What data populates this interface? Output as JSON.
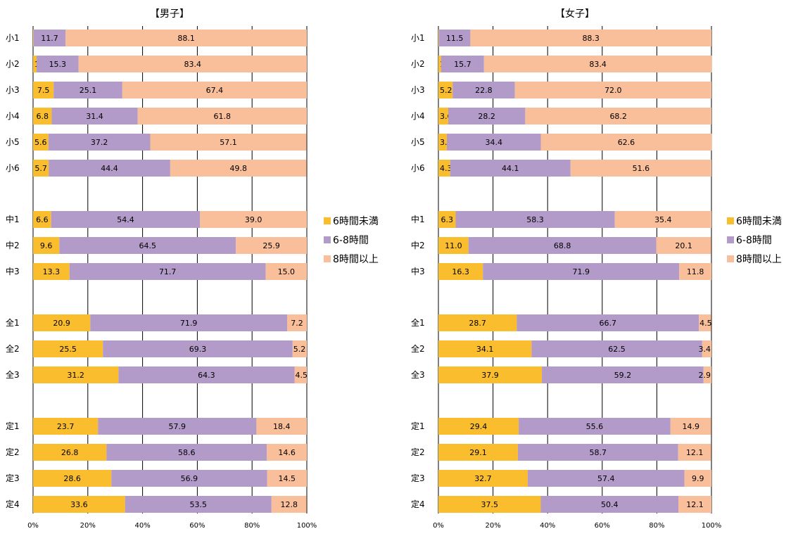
{
  "colors": {
    "under6": "#FABD2E",
    "six_to_eight": "#B29AC9",
    "over8": "#F9BE9A",
    "grid": "#000000"
  },
  "legend": [
    "6時間未満",
    "6-8時間",
    "8時間以上"
  ],
  "chart_data": [
    {
      "type": "bar",
      "orientation": "horizontal",
      "stacked": true,
      "percent_stacked": true,
      "title": "【男子】",
      "categories": [
        "小1",
        "小2",
        "小3",
        "小4",
        "小5",
        "小6",
        "中1",
        "中2",
        "中3",
        "全1",
        "全2",
        "全3",
        "定1",
        "定2",
        "定3",
        "定4"
      ],
      "groups": [
        [
          "小1",
          "小2",
          "小3",
          "小4",
          "小5",
          "小6"
        ],
        [
          "中1",
          "中2",
          "中3"
        ],
        [
          "全1",
          "全2",
          "全3"
        ],
        [
          "定1",
          "定2",
          "定3",
          "定4"
        ]
      ],
      "series": [
        {
          "name": "6時間未満",
          "values": [
            0.2,
            1.3,
            7.5,
            6.8,
            5.6,
            5.7,
            6.6,
            9.6,
            13.3,
            20.9,
            25.5,
            31.2,
            23.7,
            26.8,
            28.6,
            33.6
          ]
        },
        {
          "name": "6-8時間",
          "values": [
            11.7,
            15.3,
            25.1,
            31.4,
            37.2,
            44.4,
            54.4,
            64.5,
            71.7,
            71.9,
            69.3,
            64.3,
            57.9,
            58.6,
            56.9,
            53.5
          ]
        },
        {
          "name": "8時間以上",
          "values": [
            88.1,
            83.4,
            67.4,
            61.8,
            57.1,
            49.8,
            39.0,
            25.9,
            15.0,
            7.2,
            5.2,
            4.5,
            18.4,
            14.6,
            14.5,
            12.8
          ]
        }
      ],
      "xlim": [
        0,
        100
      ],
      "xticks": [
        "0%",
        "20%",
        "40%",
        "60%",
        "80%",
        "100%"
      ],
      "grid": "vertical",
      "legend_position": "right"
    },
    {
      "type": "bar",
      "orientation": "horizontal",
      "stacked": true,
      "percent_stacked": true,
      "title": "【女子】",
      "categories": [
        "小1",
        "小2",
        "小3",
        "小4",
        "小5",
        "小6",
        "中1",
        "中2",
        "中3",
        "全1",
        "全2",
        "全3",
        "定1",
        "定2",
        "定3",
        "定4"
      ],
      "groups": [
        [
          "小1",
          "小2",
          "小3",
          "小4",
          "小5",
          "小6"
        ],
        [
          "中1",
          "中2",
          "中3"
        ],
        [
          "全1",
          "全2",
          "全3"
        ],
        [
          "定1",
          "定2",
          "定3",
          "定4"
        ]
      ],
      "series": [
        {
          "name": "6時間未満",
          "values": [
            0.2,
            1.0,
            5.2,
            3.6,
            3.1,
            4.3,
            6.3,
            11.0,
            16.3,
            28.7,
            34.1,
            37.9,
            29.4,
            29.1,
            32.7,
            37.5
          ]
        },
        {
          "name": "6-8時間",
          "values": [
            11.5,
            15.7,
            22.8,
            28.2,
            34.4,
            44.1,
            58.3,
            68.8,
            71.9,
            66.7,
            62.5,
            59.2,
            55.6,
            58.7,
            57.4,
            50.4
          ]
        },
        {
          "name": "8時間以上",
          "values": [
            88.3,
            83.4,
            72.0,
            68.2,
            62.6,
            51.6,
            35.4,
            20.1,
            11.8,
            4.5,
            3.4,
            2.9,
            14.9,
            12.1,
            9.9,
            12.1
          ]
        }
      ],
      "xlim": [
        0,
        100
      ],
      "xticks": [
        "0%",
        "20%",
        "40%",
        "60%",
        "80%",
        "100%"
      ],
      "grid": "vertical",
      "legend_position": "right"
    }
  ]
}
